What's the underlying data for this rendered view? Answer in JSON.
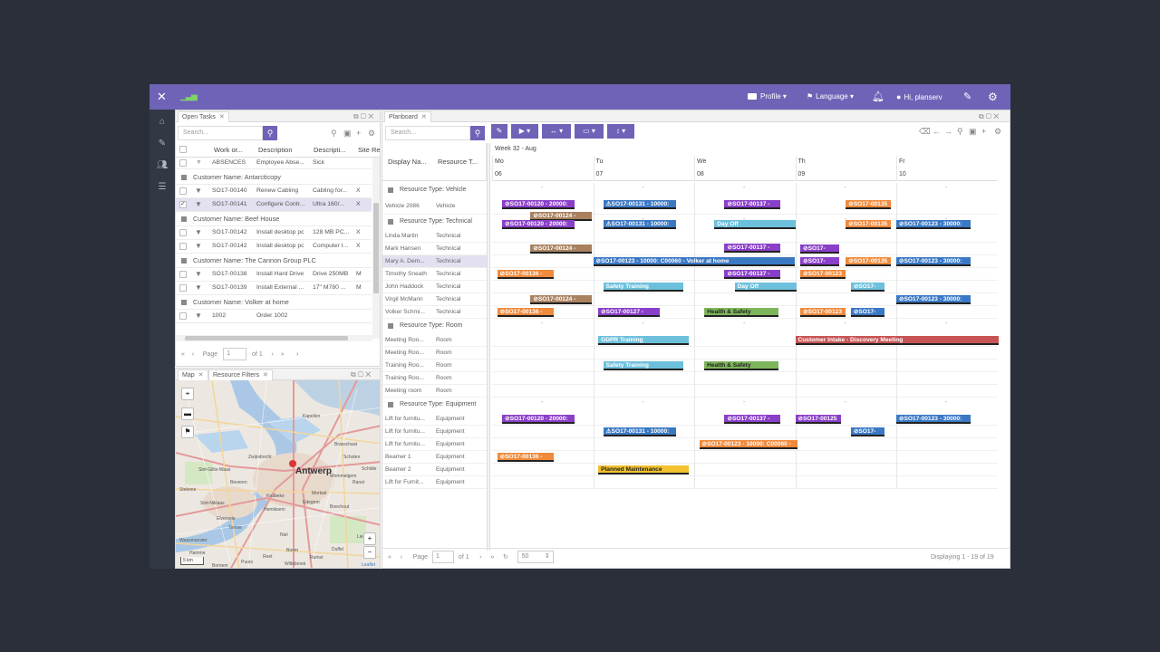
{
  "topbar": {
    "profile": "Profile",
    "language": "Language",
    "greeting": "Hi, planserv"
  },
  "open_tasks": {
    "tab": "Open Tasks",
    "search_placeholder": "Search...",
    "columns": [
      "Work or...",
      "Description",
      "Descripti...",
      "Site Re"
    ],
    "partial_row": {
      "wo": "ABSENCES",
      "desc": "Employee Abse...",
      "desc2": "Sick"
    },
    "groups": [
      {
        "label": "Customer Name: Antarcticopy",
        "rows": [
          {
            "wo": "SO17-00140",
            "desc": "Renew Cabling",
            "desc2": "Cabling for...",
            "site": "X",
            "checked": false
          },
          {
            "wo": "SO17-00141",
            "desc": "Configure Contr...",
            "desc2": "Ultra 160/...",
            "site": "X",
            "checked": true
          }
        ]
      },
      {
        "label": "Customer Name: Beef House",
        "rows": [
          {
            "wo": "SO17-00142",
            "desc": "Install desktop pc",
            "desc2": "128 MB PC...",
            "site": "X",
            "checked": false
          },
          {
            "wo": "SO17-00142",
            "desc": "Install desktop pc",
            "desc2": "Computer I...",
            "site": "X",
            "checked": false
          }
        ]
      },
      {
        "label": "Customer Name: The Cannon Group PLC",
        "rows": [
          {
            "wo": "SO17-00138",
            "desc": "Install Hard Drive",
            "desc2": "Drive 250MB",
            "site": "M",
            "checked": false
          },
          {
            "wo": "SO17-00139",
            "desc": "Install External ...",
            "desc2": "17\" M780 ...",
            "site": "M",
            "checked": false
          }
        ]
      },
      {
        "label": "Customer Name: Volker at home",
        "rows": [
          {
            "wo": "1002",
            "desc": "Order 1002",
            "desc2": "",
            "site": "",
            "checked": false
          }
        ]
      }
    ],
    "pager": {
      "page_label": "Page",
      "page_value": "1",
      "of": "of 1"
    }
  },
  "map": {
    "tab1": "Map",
    "tab2": "Resource Filters",
    "city": "Antwerp",
    "places": [
      "Kapellen",
      "Zwijndrecht",
      "Sint-Niklaas",
      "Beveren",
      "Temse",
      "Hemiksem",
      "Boom",
      "Edegem",
      "Mortsel",
      "Boechout",
      "Schilde",
      "Kruibeke",
      "Lier",
      "Duffel",
      "Hamme",
      "Willebroek",
      "Waasmunster",
      "Rumst",
      "Reet",
      "Niel",
      "Puurs",
      "Bornem",
      "Brasschaat",
      "Schoten",
      "Ranst",
      "Wommelgem",
      "Sint-Gillis-Waas",
      "Stekene",
      "Elversele",
      "Leaflet"
    ],
    "scale": "5 km",
    "attribution": "Leaflet"
  },
  "planboard": {
    "tab": "Planboard",
    "search_placeholder": "Search...",
    "col_display": "Display Na...",
    "col_type": "Resource T...",
    "week": "Week 32 - Aug",
    "days": [
      {
        "name": "Mo",
        "num": "06"
      },
      {
        "name": "Tu",
        "num": "07"
      },
      {
        "name": "We",
        "num": "08"
      },
      {
        "name": "Th",
        "num": "09"
      },
      {
        "name": "Fr",
        "num": "10"
      }
    ],
    "groups": [
      {
        "label": "Resource Type: Vehicle",
        "rows": [
          {
            "name": "Vehicle 2086",
            "type": "Vehicle",
            "active": false
          }
        ]
      },
      {
        "label": "Resource Type: Technical",
        "rows": [
          {
            "name": "Linda Martin",
            "type": "Technical",
            "active": false
          },
          {
            "name": "Mark Hansen",
            "type": "Technical",
            "active": false
          },
          {
            "name": "Mary A. Dem...",
            "type": "Technical",
            "active": true
          },
          {
            "name": "Timothy Sneath",
            "type": "Technical",
            "active": false
          },
          {
            "name": "John Haddock",
            "type": "Technical",
            "active": false
          },
          {
            "name": "Virgil McMann",
            "type": "Technical",
            "active": false
          },
          {
            "name": "Volker Schmi...",
            "type": "Technical",
            "active": false
          }
        ]
      },
      {
        "label": "Resource Type: Room",
        "rows": [
          {
            "name": "Meeting Roo...",
            "type": "Room",
            "active": false
          },
          {
            "name": "Meeting Roo...",
            "type": "Room",
            "active": false
          },
          {
            "name": "Training Roo...",
            "type": "Room",
            "active": false
          },
          {
            "name": "Training Roo...",
            "type": "Room",
            "active": false
          },
          {
            "name": "Meeting room",
            "type": "Room",
            "active": false
          }
        ]
      },
      {
        "label": "Resource Type: Equipment",
        "rows": [
          {
            "name": "Lift for furnitu...",
            "type": "Equipment",
            "active": false
          },
          {
            "name": "Lift for furnitu...",
            "type": "Equipment",
            "active": false
          },
          {
            "name": "Lift for furnitu...",
            "type": "Equipment",
            "active": false
          },
          {
            "name": "Beamer 1",
            "type": "Equipment",
            "active": false
          },
          {
            "name": "Beamer 2",
            "type": "Equipment",
            "active": false
          },
          {
            "name": "Lift for Furnit...",
            "type": "Equipment",
            "active": false
          }
        ]
      }
    ],
    "events": {
      "e1": "⊘SO17-00120 - 20000:",
      "e2": "⚠SO17-00131 - 10000:",
      "e3": "⊘SO17-00137 -",
      "e4": "⊘SO17-00135",
      "e5": "⊘SO17-00124 -",
      "e6": "Day Off",
      "e7": "⊘SO17-00123 - 30000:",
      "e8": "⊘SO17-00123 - 10000: C00060 - Volker at home",
      "e9": "⊘SO17-",
      "e10": "⊘SO17-00136 -",
      "e11": "⊘SO17-00123",
      "e12": "Safety Training",
      "e13": "⊘SO17-00127 -",
      "e14": "Health & Safety",
      "e15": "GDPR Training",
      "e16": "Customer Intake - Discovery Meeting",
      "e17": "⊘SO17-00125",
      "e18": "⊘SO17-00123 - 10000: C00060 -",
      "e19": "Planned Maintenance",
      "dash": "-"
    },
    "pager": {
      "page_label": "Page",
      "page_value": "1",
      "of": "of 1",
      "page_size": "50",
      "displaying": "Displaying 1 - 19 of 19"
    }
  },
  "colors": {
    "header": "#6f63b8",
    "purple": "#8a3fc8",
    "blue": "#3a78c4",
    "orange": "#f08a3c",
    "brown": "#a9815f",
    "lightblue": "#6cc0dc",
    "green": "#7db65a",
    "red": "#c75454",
    "yellow": "#f2c12e"
  }
}
